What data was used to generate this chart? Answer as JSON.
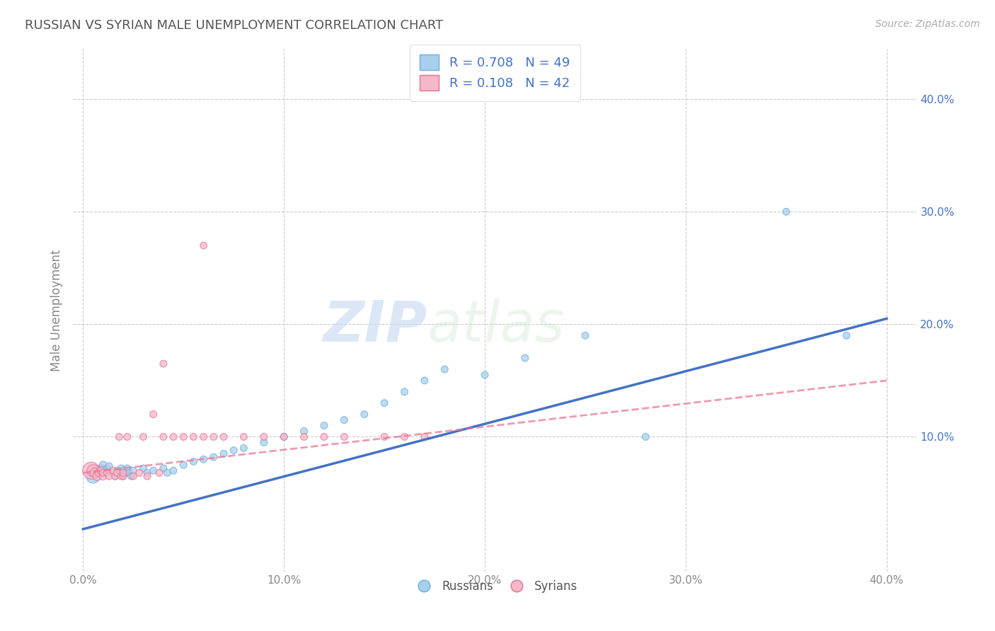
{
  "title": "RUSSIAN VS SYRIAN MALE UNEMPLOYMENT CORRELATION CHART",
  "source": "Source: ZipAtlas.com",
  "xlabel": "",
  "ylabel": "Male Unemployment",
  "xlim": [
    -0.005,
    0.415
  ],
  "ylim": [
    -0.02,
    0.445
  ],
  "xtick_labels": [
    "0.0%",
    "",
    "10.0%",
    "",
    "20.0%",
    "",
    "30.0%",
    "",
    "40.0%"
  ],
  "xtick_vals": [
    0.0,
    0.05,
    0.1,
    0.15,
    0.2,
    0.25,
    0.3,
    0.35,
    0.4
  ],
  "ytick_labels": [
    "10.0%",
    "20.0%",
    "30.0%",
    "40.0%"
  ],
  "ytick_vals": [
    0.1,
    0.2,
    0.3,
    0.4
  ],
  "russian_color": "#a8d0ee",
  "russian_edge": "#6baed6",
  "syrian_color": "#f4b8c8",
  "syrian_edge": "#e87090",
  "R_russian": 0.708,
  "N_russian": 49,
  "R_syrian": 0.108,
  "N_syrian": 42,
  "watermark_zip": "ZIP",
  "watermark_atlas": "atlas",
  "background_color": "#ffffff",
  "grid_color": "#cccccc",
  "title_color": "#555555",
  "legend_text_color": "#4472c4",
  "russians_x": [
    0.005,
    0.007,
    0.008,
    0.009,
    0.01,
    0.01,
    0.012,
    0.013,
    0.015,
    0.016,
    0.017,
    0.018,
    0.019,
    0.02,
    0.02,
    0.021,
    0.022,
    0.023,
    0.024,
    0.025,
    0.03,
    0.032,
    0.035,
    0.04,
    0.042,
    0.045,
    0.05,
    0.055,
    0.06,
    0.065,
    0.07,
    0.075,
    0.08,
    0.09,
    0.1,
    0.11,
    0.12,
    0.13,
    0.14,
    0.15,
    0.16,
    0.17,
    0.18,
    0.2,
    0.22,
    0.25,
    0.28,
    0.35,
    0.38
  ],
  "russians_y": [
    0.065,
    0.07,
    0.07,
    0.072,
    0.07,
    0.075,
    0.072,
    0.074,
    0.068,
    0.065,
    0.07,
    0.068,
    0.072,
    0.065,
    0.07,
    0.068,
    0.072,
    0.068,
    0.065,
    0.07,
    0.072,
    0.068,
    0.07,
    0.072,
    0.068,
    0.07,
    0.075,
    0.078,
    0.08,
    0.082,
    0.085,
    0.088,
    0.09,
    0.095,
    0.1,
    0.105,
    0.11,
    0.115,
    0.12,
    0.13,
    0.14,
    0.15,
    0.16,
    0.155,
    0.17,
    0.19,
    0.1,
    0.3,
    0.19
  ],
  "russians_size": [
    200,
    100,
    80,
    60,
    80,
    60,
    50,
    50,
    50,
    50,
    50,
    50,
    50,
    50,
    50,
    50,
    50,
    50,
    50,
    50,
    50,
    50,
    50,
    50,
    50,
    50,
    50,
    50,
    50,
    50,
    50,
    50,
    50,
    50,
    50,
    50,
    50,
    50,
    50,
    50,
    50,
    50,
    50,
    50,
    50,
    50,
    50,
    50,
    50
  ],
  "syrians_x": [
    0.004,
    0.005,
    0.006,
    0.007,
    0.008,
    0.009,
    0.01,
    0.01,
    0.012,
    0.013,
    0.015,
    0.016,
    0.017,
    0.018,
    0.019,
    0.02,
    0.02,
    0.022,
    0.025,
    0.028,
    0.03,
    0.032,
    0.035,
    0.038,
    0.04,
    0.045,
    0.05,
    0.055,
    0.06,
    0.065,
    0.07,
    0.08,
    0.09,
    0.1,
    0.11,
    0.12,
    0.13,
    0.15,
    0.16,
    0.17,
    0.04,
    0.06
  ],
  "syrians_y": [
    0.07,
    0.07,
    0.068,
    0.065,
    0.068,
    0.07,
    0.065,
    0.068,
    0.068,
    0.065,
    0.07,
    0.065,
    0.068,
    0.1,
    0.065,
    0.065,
    0.068,
    0.1,
    0.065,
    0.068,
    0.1,
    0.065,
    0.12,
    0.068,
    0.1,
    0.1,
    0.1,
    0.1,
    0.1,
    0.1,
    0.1,
    0.1,
    0.1,
    0.1,
    0.1,
    0.1,
    0.1,
    0.1,
    0.1,
    0.1,
    0.165,
    0.27
  ],
  "syrians_size": [
    300,
    150,
    100,
    80,
    70,
    60,
    60,
    50,
    50,
    50,
    50,
    50,
    50,
    50,
    50,
    50,
    50,
    50,
    50,
    50,
    50,
    50,
    50,
    50,
    50,
    50,
    50,
    50,
    50,
    50,
    50,
    50,
    50,
    50,
    50,
    50,
    50,
    50,
    50,
    50,
    50,
    50
  ],
  "russian_line_x": [
    0.0,
    0.4
  ],
  "russian_line_y": [
    0.018,
    0.205
  ],
  "syrian_line_x": [
    0.0,
    0.4
  ],
  "syrian_line_y": [
    0.068,
    0.15
  ]
}
